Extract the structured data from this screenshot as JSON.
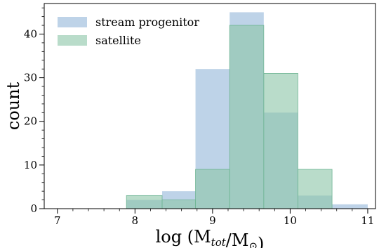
{
  "chart_data": {
    "type": "bar",
    "subtype": "overlapping-histogram",
    "xlabel": "log (M_tot/M_⊙)",
    "ylabel": "count",
    "xlim": [
      6.83,
      11.1
    ],
    "ylim": [
      0,
      47
    ],
    "xticks": [
      {
        "value": 7,
        "label": "7"
      },
      {
        "value": 8,
        "label": "8"
      },
      {
        "value": 9,
        "label": "9"
      },
      {
        "value": 10,
        "label": "10"
      },
      {
        "value": 11,
        "label": "11"
      }
    ],
    "yticks": [
      {
        "value": 0,
        "label": "0"
      },
      {
        "value": 10,
        "label": "10"
      },
      {
        "value": 20,
        "label": "20"
      },
      {
        "value": 30,
        "label": "30"
      },
      {
        "value": 40,
        "label": "40"
      }
    ],
    "bin_edges": [
      7.89,
      8.35,
      8.78,
      9.22,
      9.66,
      10.1,
      10.54,
      11.0
    ],
    "legend_position": "top-left",
    "grid": false,
    "series": [
      {
        "name": "stream progenitor",
        "color": "#b8cfe6",
        "values": [
          2,
          4,
          32,
          45,
          22,
          3,
          1
        ]
      },
      {
        "name": "satellite",
        "color": "#8ec7a9",
        "values": [
          3,
          2,
          9,
          42,
          31,
          9,
          0
        ]
      }
    ]
  }
}
